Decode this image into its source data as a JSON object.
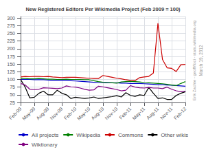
{
  "chart_data": {
    "type": "line",
    "title": "New Registered Editors Per Wikimedia Project (Feb 2009 = 100)",
    "categories": [
      "Feb-09",
      null,
      null,
      "May-09",
      null,
      null,
      "Aug-09",
      null,
      null,
      "Nov-09",
      null,
      null,
      "Feb-10",
      null,
      null,
      "May-10",
      null,
      null,
      "Aug-10",
      null,
      null,
      "Nov-10",
      null,
      null,
      "Feb-11",
      null,
      null,
      "May-11",
      null,
      null,
      "Aug-11",
      null,
      null,
      "Nov-11",
      null,
      null,
      "Feb-12"
    ],
    "series": [
      {
        "name": "All projects",
        "color": "#0000cc",
        "values": [
          100,
          100,
          100,
          99,
          99,
          99,
          98,
          97,
          97,
          97,
          97,
          96,
          95,
          94,
          93,
          92,
          91,
          90,
          90,
          89,
          89,
          89,
          88,
          88,
          87,
          87,
          87,
          86,
          85,
          84,
          83,
          83,
          82,
          81,
          80,
          79,
          78
        ]
      },
      {
        "name": "Wikipedia",
        "color": "#008000",
        "values": [
          103,
          103,
          102,
          102,
          103,
          102,
          101,
          101,
          100,
          100,
          101,
          100,
          100,
          100,
          99,
          99,
          96,
          93,
          91,
          90,
          89,
          88,
          92,
          93,
          94,
          93,
          92,
          90,
          89,
          88,
          87,
          86,
          84,
          82,
          80,
          87,
          93
        ]
      },
      {
        "name": "Commons",
        "color": "#cc0000",
        "values": [
          108,
          110,
          109,
          110,
          110,
          109,
          110,
          108,
          107,
          106,
          107,
          107,
          107,
          106,
          105,
          104,
          103,
          103,
          113,
          110,
          107,
          104,
          102,
          99,
          97,
          96,
          106,
          108,
          110,
          121,
          283,
          165,
          138,
          136,
          126,
          148,
          149
        ]
      },
      {
        "name": "Other wikis",
        "color": "#000000",
        "values": [
          100,
          75,
          40,
          42,
          55,
          62,
          50,
          50,
          65,
          55,
          50,
          38,
          42,
          40,
          38,
          40,
          43,
          38,
          40,
          42,
          44,
          47,
          43,
          57,
          48,
          45,
          50,
          48,
          74,
          55,
          38,
          40,
          35,
          35,
          48,
          55,
          60
        ]
      },
      {
        "name": "Wiktionary",
        "color": "#800080",
        "values": [
          87,
          82,
          68,
          67,
          68,
          73,
          72,
          71,
          70,
          72,
          79,
          76,
          75,
          72,
          68,
          65,
          66,
          78,
          76,
          73,
          70,
          67,
          63,
          65,
          80,
          75,
          73,
          72,
          74,
          72,
          72,
          70,
          75,
          68,
          63,
          60,
          62
        ]
      }
    ],
    "ylim": [
      25,
      305
    ],
    "yticks": [
      25,
      50,
      75,
      100,
      125,
      150,
      175,
      200,
      225,
      250,
      275,
      300
    ],
    "grid": true,
    "legend": "bottom",
    "annotations": [
      "March 19, 2012",
      "Erik Zachte - geoff/foci - stats.wikimedia.org"
    ]
  }
}
